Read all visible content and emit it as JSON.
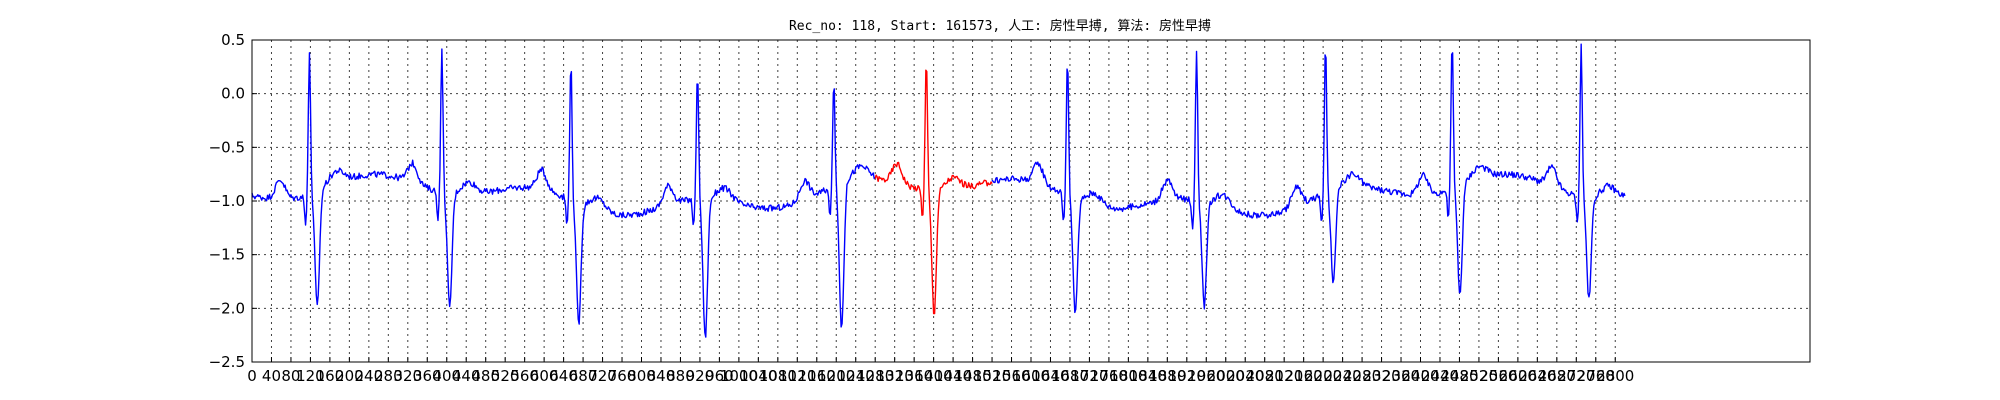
{
  "chart_data": {
    "type": "line",
    "title": "Rec_no: 118, Start: 161573, 人工: 房性早搏, 算法: 房性早搏",
    "xlabel": "",
    "ylabel": "",
    "xlim": [
      0,
      3200
    ],
    "ylim": [
      -2.5,
      0.5
    ],
    "grid": true,
    "y_ticks": [
      0.5,
      0.0,
      -0.5,
      -1.0,
      -1.5,
      -2.0,
      -2.5
    ],
    "y_tick_labels": [
      "0.5",
      "0.0",
      "−0.5",
      "−1.0",
      "−1.5",
      "−2.0",
      "−2.5"
    ],
    "x_ticks": [
      0,
      40,
      80,
      120,
      160,
      200,
      240,
      280,
      320,
      360,
      400,
      440,
      480,
      520,
      560,
      600,
      640,
      680,
      720,
      760,
      800,
      840,
      880,
      920,
      960,
      1000,
      1040,
      1080,
      1120,
      1160,
      1200,
      1240,
      1280,
      1320,
      1360,
      1400,
      1440,
      1480,
      1520,
      1560,
      1600,
      1640,
      1680,
      1720,
      1760,
      1800,
      1840,
      1880,
      1920,
      1960,
      2000,
      2040,
      2080,
      2120,
      2160,
      2200,
      2240,
      2280,
      2320,
      2360,
      2400,
      2440,
      2480,
      2520,
      2560,
      2600,
      2640,
      2680,
      2720,
      2760,
      2800
    ],
    "x_tick_labels": [
      "0",
      "40",
      "80",
      "120",
      "160",
      "200",
      "240",
      "280",
      "320",
      "360",
      "400",
      "440",
      "480",
      "520",
      "560",
      "600",
      "640",
      "680",
      "720",
      "760",
      "800",
      "840",
      "880",
      "920",
      "960",
      "1000",
      "1040",
      "1080",
      "1120",
      "1160",
      "1200",
      "1240",
      "1280",
      "1320",
      "1360",
      "1400",
      "1440",
      "1480",
      "1520",
      "1560",
      "1600",
      "1640",
      "1680",
      "1720",
      "1760",
      "1800",
      "1840",
      "1880",
      "1920",
      "1960",
      "2000",
      "2040",
      "2080",
      "2120",
      "2160",
      "2200",
      "2240",
      "2280",
      "2320",
      "2360",
      "2400",
      "2440",
      "2480",
      "2520",
      "2560",
      "2600",
      "2640",
      "2680",
      "2720",
      "2760",
      "2800"
    ],
    "beats_approx": [
      {
        "r_x": 118,
        "r_y": 0.35,
        "s_y": -2.03,
        "color": "#0000ff"
      },
      {
        "r_x": 390,
        "r_y": 0.37,
        "s_y": -2.02,
        "color": "#0000ff"
      },
      {
        "r_x": 655,
        "r_y": 0.35,
        "s_y": -2.08,
        "color": "#0000ff"
      },
      {
        "r_x": 915,
        "r_y": 0.26,
        "s_y": -2.25,
        "color": "#0000ff"
      },
      {
        "r_x": 1195,
        "r_y": 0.05,
        "s_y": -2.3,
        "color": "#0000ff"
      },
      {
        "r_x": 1385,
        "r_y": 0.27,
        "s_y": -2.1,
        "color": "#ff0000"
      },
      {
        "r_x": 1675,
        "r_y": 0.33,
        "s_y": -2.03,
        "color": "#0000ff"
      },
      {
        "r_x": 1940,
        "r_y": 0.46,
        "s_y": -1.92,
        "color": "#0000ff"
      },
      {
        "r_x": 2205,
        "r_y": 0.45,
        "s_y": -1.82,
        "color": "#0000ff"
      },
      {
        "r_x": 2465,
        "r_y": 0.44,
        "s_y": -1.97,
        "color": "#0000ff"
      },
      {
        "r_x": 2730,
        "r_y": 0.46,
        "s_y": -1.9,
        "color": "#0000ff"
      }
    ],
    "series": [
      {
        "color": "#0000ff",
        "x_range": [
          0,
          1280
        ]
      },
      {
        "color": "#ff0000",
        "x_range": [
          1280,
          1520
        ]
      },
      {
        "color": "#0000ff",
        "x_range": [
          1520,
          2820
        ]
      }
    ]
  }
}
